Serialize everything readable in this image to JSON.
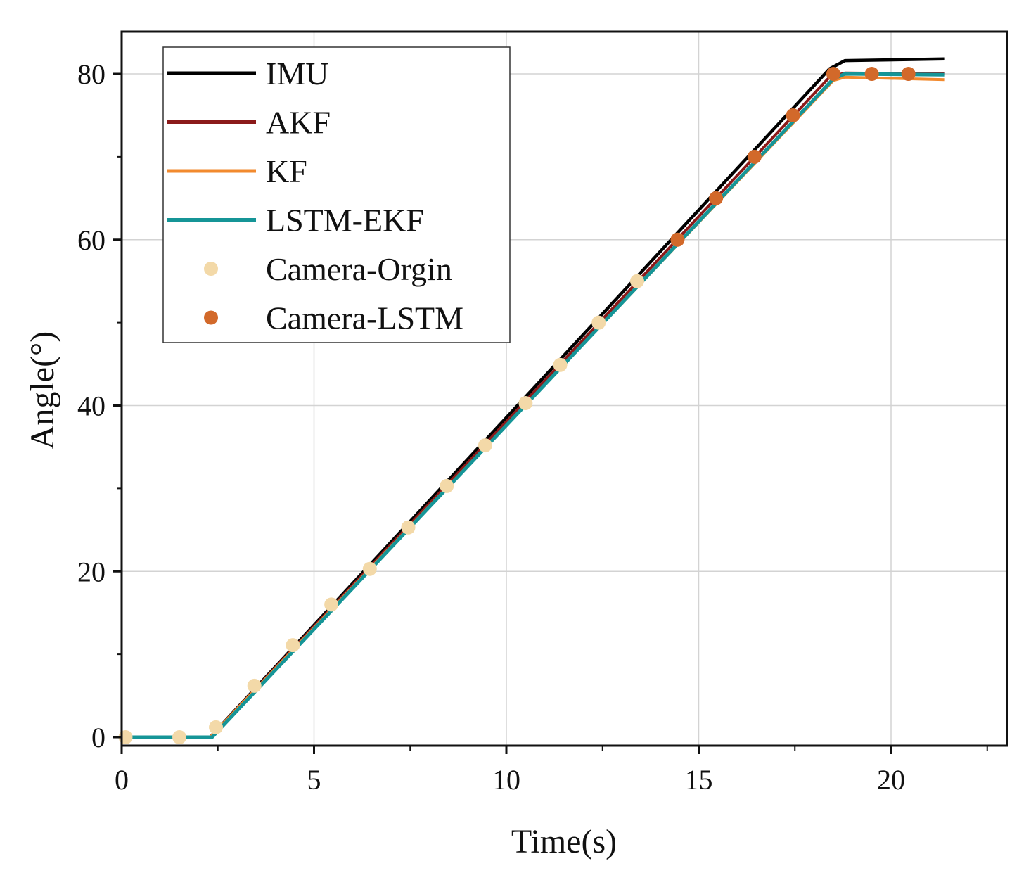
{
  "chart_data": {
    "type": "line",
    "title": "",
    "xlabel": "Time(s)",
    "ylabel": "Angle(°)",
    "xlim": [
      0,
      23
    ],
    "ylim": [
      -1,
      85
    ],
    "xticks": [
      0,
      5,
      10,
      15,
      20
    ],
    "yticks": [
      0,
      20,
      40,
      60,
      80
    ],
    "grid": true,
    "legend_position": "top-left",
    "series": [
      {
        "name": "IMU",
        "kind": "line",
        "color": "#000000",
        "x": [
          0,
          2.3,
          18.4,
          18.8,
          21.4
        ],
        "y": [
          0,
          0,
          80.6,
          81.6,
          81.8
        ]
      },
      {
        "name": "AKF",
        "kind": "line",
        "color": "#8b1a1a",
        "x": [
          0,
          2.3,
          18.4,
          18.8,
          21.4
        ],
        "y": [
          0,
          0,
          79.6,
          80.1,
          80.0
        ]
      },
      {
        "name": "KF",
        "kind": "line",
        "color": "#f28a2e",
        "x": [
          0,
          2.3,
          18.5,
          18.8,
          21.4
        ],
        "y": [
          0,
          0,
          79.2,
          79.6,
          79.3
        ]
      },
      {
        "name": "LSTM-EKF",
        "kind": "line",
        "color": "#159597",
        "x": [
          0,
          2.35,
          18.5,
          18.8,
          21.4
        ],
        "y": [
          0,
          0,
          79.4,
          80.0,
          79.9
        ]
      },
      {
        "name": "Camera-Orgin",
        "kind": "scatter",
        "color": "#f3d9a8",
        "x": [
          0.1,
          1.5,
          2.45,
          3.45,
          4.45,
          5.45,
          6.45,
          7.45,
          8.45,
          9.45,
          10.5,
          11.4,
          12.4,
          13.4
        ],
        "y": [
          0,
          0,
          1.2,
          6.2,
          11.1,
          16.0,
          20.3,
          25.3,
          30.3,
          35.2,
          40.3,
          44.9,
          50.0,
          55.0
        ]
      },
      {
        "name": "Camera-LSTM",
        "kind": "scatter",
        "color": "#d2692a",
        "x": [
          14.45,
          15.45,
          16.45,
          17.45,
          18.5,
          19.5,
          20.45
        ],
        "y": [
          60.0,
          65.0,
          70.0,
          75.0,
          80.0,
          80.0,
          80.0
        ]
      }
    ]
  }
}
